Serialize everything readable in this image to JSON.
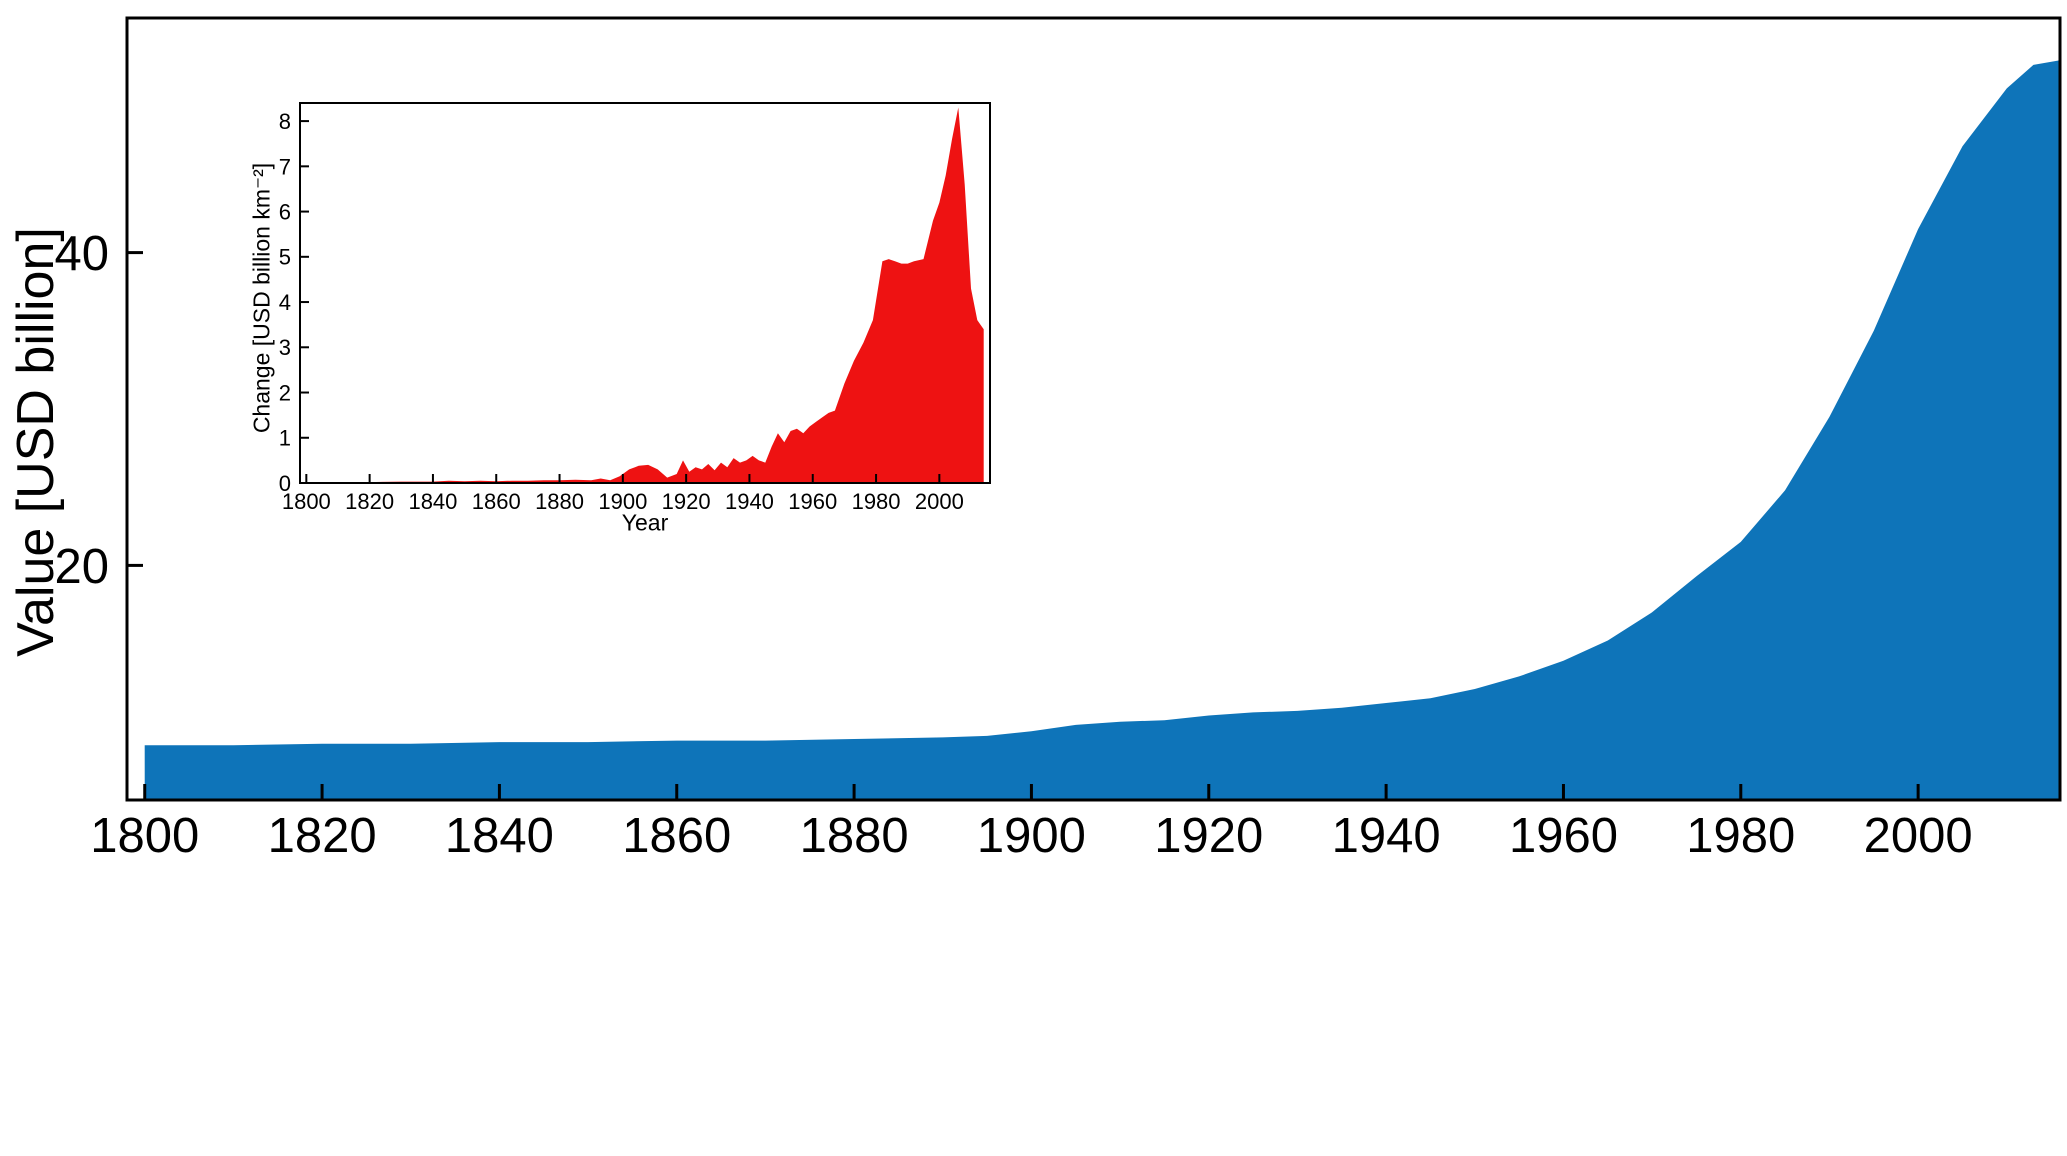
{
  "chart_data": [
    {
      "id": "main",
      "type": "area",
      "title": "",
      "xlabel": "",
      "ylabel": "Value [USD billion]",
      "x": [
        1800,
        1810,
        1820,
        1830,
        1840,
        1850,
        1860,
        1870,
        1880,
        1890,
        1895,
        1900,
        1905,
        1910,
        1915,
        1920,
        1925,
        1930,
        1935,
        1940,
        1945,
        1950,
        1955,
        1960,
        1965,
        1970,
        1975,
        1980,
        1985,
        1990,
        1995,
        2000,
        2005,
        2010,
        2013,
        2016
      ],
      "values": [
        8.5,
        8.5,
        8.6,
        8.6,
        8.7,
        8.7,
        8.8,
        8.8,
        8.9,
        9.0,
        9.1,
        9.4,
        9.8,
        10.0,
        10.1,
        10.4,
        10.6,
        10.7,
        10.9,
        11.2,
        11.5,
        12.1,
        12.9,
        13.9,
        15.2,
        17.0,
        19.3,
        21.5,
        24.8,
        29.5,
        35.0,
        41.5,
        46.8,
        50.5,
        52.0,
        52.3
      ],
      "xlim": [
        1798,
        2016
      ],
      "ylim": [
        5,
        55
      ],
      "xticks": [
        1800,
        1820,
        1840,
        1860,
        1880,
        1900,
        1920,
        1940,
        1960,
        1980,
        2000
      ],
      "yticks": [
        20,
        40
      ],
      "fill_color": "#0e74b9",
      "axis_color": "#000000",
      "grid": false,
      "legend": "none"
    },
    {
      "id": "inset",
      "type": "area",
      "title": "",
      "xlabel": "Year",
      "ylabel": "Change [USD billion km⁻²]",
      "x": [
        1800,
        1810,
        1820,
        1830,
        1840,
        1845,
        1850,
        1855,
        1860,
        1865,
        1870,
        1875,
        1880,
        1885,
        1890,
        1893,
        1896,
        1899,
        1902,
        1905,
        1908,
        1911,
        1914,
        1917,
        1919,
        1921,
        1923,
        1925,
        1927,
        1929,
        1931,
        1933,
        1935,
        1937,
        1939,
        1941,
        1943,
        1945,
        1947,
        1949,
        1951,
        1953,
        1955,
        1957,
        1959,
        1961,
        1963,
        1965,
        1967,
        1970,
        1973,
        1976,
        1979,
        1982,
        1984,
        1986,
        1988,
        1990,
        1992,
        1995,
        1998,
        2000,
        2002,
        2004,
        2006,
        2008,
        2010,
        2012,
        2013,
        2014
      ],
      "values": [
        0.02,
        0.02,
        0.02,
        0.03,
        0.03,
        0.05,
        0.04,
        0.05,
        0.04,
        0.05,
        0.05,
        0.06,
        0.06,
        0.07,
        0.06,
        0.1,
        0.06,
        0.15,
        0.3,
        0.38,
        0.4,
        0.3,
        0.12,
        0.2,
        0.5,
        0.25,
        0.35,
        0.3,
        0.42,
        0.28,
        0.45,
        0.35,
        0.55,
        0.45,
        0.5,
        0.6,
        0.5,
        0.45,
        0.8,
        1.1,
        0.9,
        1.15,
        1.2,
        1.1,
        1.25,
        1.35,
        1.45,
        1.55,
        1.6,
        2.2,
        2.7,
        3.1,
        3.6,
        4.9,
        4.95,
        4.9,
        4.85,
        4.85,
        4.9,
        4.95,
        5.8,
        6.2,
        6.8,
        7.6,
        8.3,
        6.6,
        4.3,
        3.6,
        3.5,
        3.4
      ],
      "xlim": [
        1798,
        2016
      ],
      "ylim": [
        0,
        8.4
      ],
      "xticks": [
        1800,
        1820,
        1840,
        1860,
        1880,
        1900,
        1920,
        1940,
        1960,
        1980,
        2000
      ],
      "yticks": [
        0,
        1,
        2,
        3,
        4,
        5,
        6,
        7,
        8
      ],
      "fill_color": "#ee1212",
      "axis_color": "#000000",
      "grid": false,
      "legend": "none"
    }
  ]
}
